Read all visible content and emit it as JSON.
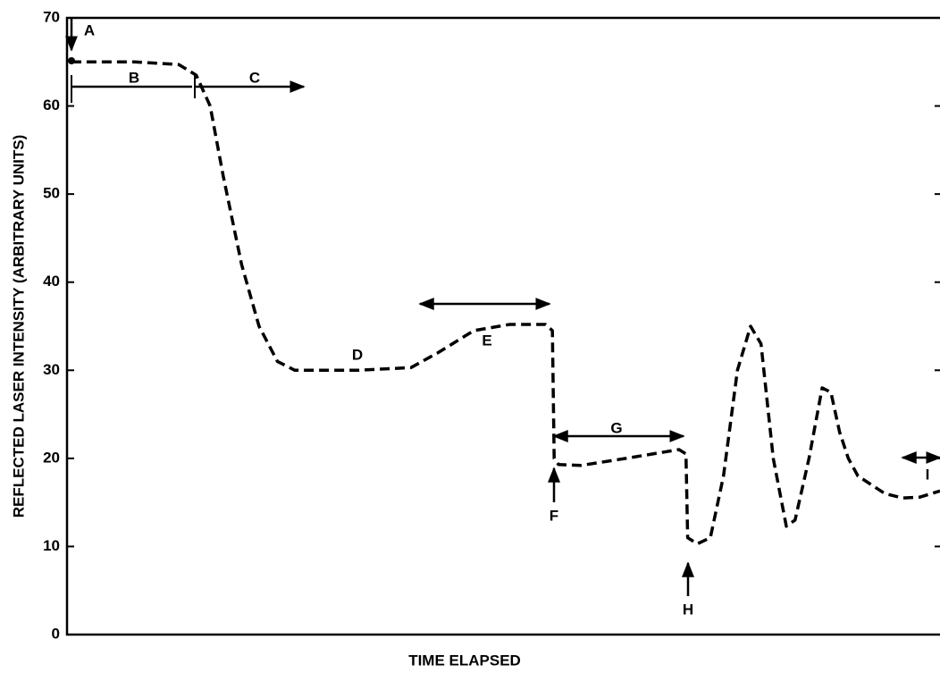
{
  "chart_data": {
    "type": "line",
    "xlabel": "TIME ELAPSED",
    "ylabel": "REFLECTED LASER INTENSITY (ARBITRARY UNITS)",
    "xlim": [
      0,
      100
    ],
    "ylim": [
      0,
      70
    ],
    "yticks": [
      0,
      10,
      20,
      30,
      40,
      50,
      60,
      70
    ],
    "series": [
      {
        "color": "#000000",
        "dashed": true,
        "x": [
          0.5,
          7.7,
          12.8,
          14.8,
          16.4,
          17.9,
          20,
          22,
          24.1,
          26.1,
          33.3,
          39.4,
          42.5,
          46.6,
          50.7,
          54.8,
          55.6,
          55.8,
          56.3,
          58.9,
          64,
          70.1,
          70.9,
          71.1,
          72.2,
          73.7,
          75.2,
          76.8,
          78.3,
          79.5,
          80.9,
          82.4,
          83.4,
          85,
          86.5,
          87.5,
          88.5,
          89.5,
          90.6,
          93.7,
          95.7,
          97.7,
          100
        ],
        "values": [
          65,
          65,
          64.7,
          63.5,
          60,
          52,
          42,
          35,
          31,
          30,
          30,
          30.3,
          32,
          34.5,
          35.2,
          35.2,
          34.5,
          20,
          19.3,
          19.2,
          20,
          21,
          20.5,
          11,
          10.3,
          11,
          18,
          30,
          35,
          33,
          20,
          12.3,
          13,
          20,
          28,
          27.5,
          23,
          20,
          18,
          16,
          15.5,
          15.6,
          16.3
        ]
      }
    ],
    "annotations": [
      {
        "text": "A"
      },
      {
        "text": "B"
      },
      {
        "text": "C"
      },
      {
        "text": "D"
      },
      {
        "text": "E"
      },
      {
        "text": "F"
      },
      {
        "text": "G"
      },
      {
        "text": "H"
      },
      {
        "text": "I"
      }
    ]
  }
}
